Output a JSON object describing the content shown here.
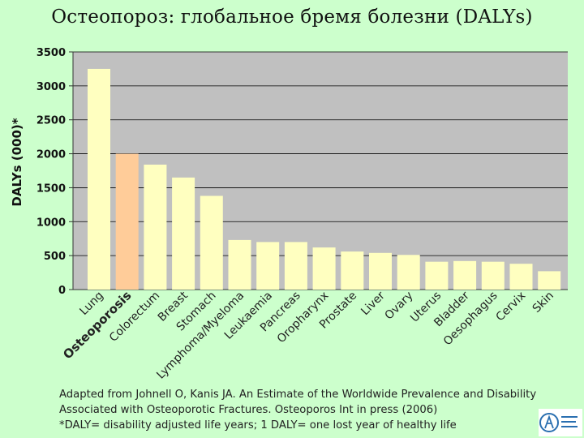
{
  "title": "Остеопороз: глобальное бремя болезни (DALYs)",
  "footnotes": [
    "Adapted from Johnell O, Kanis JA. An Estimate of the Worldwide Prevalence and Disability",
    "Associated with Osteoporotic Fractures. Osteoporos Int in press (2006)",
    "*DALY= disability adjusted life years; 1 DALY= one lost year of healthy life"
  ],
  "colors": {
    "plot_background": "#c0c0c0",
    "bar_default": "#ffffc0",
    "bar_highlight": "#ffcc99",
    "page_background": "#ccffcc"
  },
  "chart_data": {
    "type": "bar",
    "ylabel": "DALYs (000)*",
    "ylim": [
      0,
      3500
    ],
    "yticks": [
      0,
      500,
      1000,
      1500,
      2000,
      2500,
      3000,
      3500
    ],
    "grid": true,
    "categories": [
      "Lung",
      "Osteoporosis",
      "Colorectum",
      "Breast",
      "Stomach",
      "Lymphoma/Myeloma",
      "Leukaemia",
      "Pancreas",
      "Oropharynx",
      "Prostate",
      "Liver",
      "Ovary",
      "Uterus",
      "Bladder",
      "Oesophagus",
      "Cervix",
      "Skin"
    ],
    "values": [
      3250,
      2000,
      1840,
      1650,
      1380,
      730,
      700,
      700,
      620,
      560,
      540,
      510,
      410,
      420,
      410,
      380,
      270
    ],
    "highlight": "Osteoporosis"
  }
}
